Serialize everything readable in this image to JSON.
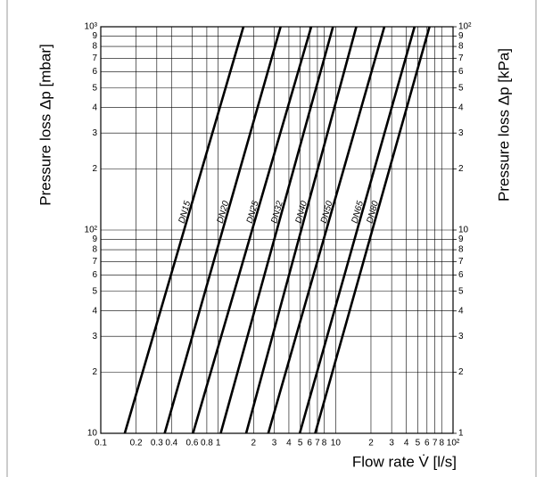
{
  "chart_data": {
    "type": "line",
    "log_x": true,
    "log_y": true,
    "grid": true,
    "y_label": "Pressure loss Δp [mbar]",
    "y2_label": "Pressure loss Δp [kPa]",
    "x_label": "Flow rate V̇ [l/s]",
    "xlim": [
      0.1,
      100
    ],
    "ylim": [
      10,
      1000
    ],
    "y2lim": [
      1,
      100
    ],
    "xticks": [
      0.1,
      0.2,
      0.3,
      0.4,
      0.6,
      0.8,
      1,
      2,
      3,
      4,
      5,
      6,
      7,
      8,
      10,
      {
        "value": 20,
        "label": "2"
      },
      {
        "value": 30,
        "label": "3"
      },
      {
        "value": 40,
        "label": "4"
      },
      {
        "value": 50,
        "label": "5"
      },
      {
        "value": 60,
        "label": "6"
      },
      {
        "value": 70,
        "label": "7"
      },
      {
        "value": 80,
        "label": "8"
      },
      {
        "value": 100,
        "label": "10²"
      }
    ],
    "yticks": [
      10,
      {
        "value": 20,
        "label": "2"
      },
      {
        "value": 30,
        "label": "3"
      },
      {
        "value": 40,
        "label": "4"
      },
      {
        "value": 50,
        "label": "5"
      },
      {
        "value": 60,
        "label": "6"
      },
      {
        "value": 70,
        "label": "7"
      },
      {
        "value": 80,
        "label": "8"
      },
      {
        "value": 90,
        "label": "9"
      },
      {
        "value": 100,
        "label": "10²"
      },
      {
        "value": 200,
        "label": "2"
      },
      {
        "value": 300,
        "label": "3"
      },
      {
        "value": 400,
        "label": "4"
      },
      {
        "value": 500,
        "label": "5"
      },
      {
        "value": 600,
        "label": "6"
      },
      {
        "value": 700,
        "label": "7"
      },
      {
        "value": 800,
        "label": "8"
      },
      {
        "value": 900,
        "label": "9"
      },
      {
        "value": 1000,
        "label": "10³"
      }
    ],
    "y2ticks": [
      1,
      2,
      3,
      4,
      5,
      6,
      7,
      8,
      9,
      10,
      {
        "value": 20,
        "label": "2"
      },
      {
        "value": 30,
        "label": "3"
      },
      {
        "value": 40,
        "label": "4"
      },
      {
        "value": 50,
        "label": "5"
      },
      {
        "value": 60,
        "label": "6"
      },
      {
        "value": 70,
        "label": "7"
      },
      {
        "value": 80,
        "label": "8"
      },
      {
        "value": 90,
        "label": "9"
      },
      {
        "value": 100,
        "label": "10²"
      }
    ],
    "series": [
      {
        "name": "DN15",
        "color": "#000000",
        "x": [
          0.16,
          1.64
        ],
        "values": [
          10,
          1000
        ]
      },
      {
        "name": "DN20",
        "color": "#000000",
        "x": [
          0.35,
          3.4
        ],
        "values": [
          10,
          1000
        ]
      },
      {
        "name": "DN25",
        "color": "#000000",
        "x": [
          0.61,
          6.2
        ],
        "values": [
          10,
          1000
        ]
      },
      {
        "name": "DN32",
        "color": "#000000",
        "x": [
          1.05,
          9.5
        ],
        "values": [
          10,
          1000
        ]
      },
      {
        "name": "DN40",
        "color": "#000000",
        "x": [
          1.73,
          15
        ],
        "values": [
          10,
          1000
        ]
      },
      {
        "name": "DN50",
        "color": "#000000",
        "x": [
          2.67,
          26
        ],
        "values": [
          10,
          1000
        ]
      },
      {
        "name": "DN65",
        "color": "#000000",
        "x": [
          4.95,
          47
        ],
        "values": [
          10,
          1000
        ]
      },
      {
        "name": "DN80",
        "color": "#000000",
        "x": [
          6.7,
          63
        ],
        "values": [
          10,
          1000
        ]
      }
    ]
  }
}
